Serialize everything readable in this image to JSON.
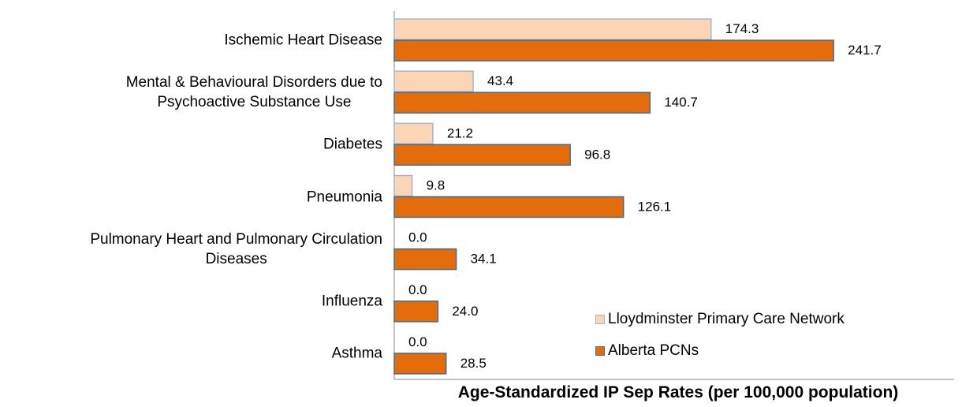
{
  "chart_data": {
    "type": "bar",
    "orientation": "horizontal",
    "x_label": "Age-Standardized IP Sep Rates (per 100,000 population)",
    "categories": [
      "Ischemic Heart Disease",
      "Mental & Behavioural Disorders due to\nPsychoactive Substance Use",
      "Diabetes",
      "Pneumonia",
      "Pulmonary Heart and Pulmonary Circulation\nDiseases",
      "Influenza",
      "Asthma"
    ],
    "series": [
      {
        "name": "Lloydminster Primary Care Network",
        "color": "#fcd5b5",
        "stroke": "#9fb6d6",
        "values": [
          174.3,
          43.4,
          21.2,
          9.8,
          0,
          0,
          0
        ],
        "value_labels": [
          "174.3",
          "43.4",
          "21.2",
          "9.8",
          "0.0",
          "0.0",
          "0.0"
        ]
      },
      {
        "name": "Alberta PCNs",
        "color": "#e46c0a",
        "stroke": "#3f6f8f",
        "values": [
          241.7,
          140.7,
          96.8,
          126.1,
          34.1,
          24,
          28.5
        ],
        "value_labels": [
          "241.7",
          "140.7",
          "96.8",
          "126.1",
          "34.1",
          "24.0",
          "28.5"
        ]
      }
    ],
    "xlim": [
      0,
      308
    ],
    "legend": "lower right"
  }
}
